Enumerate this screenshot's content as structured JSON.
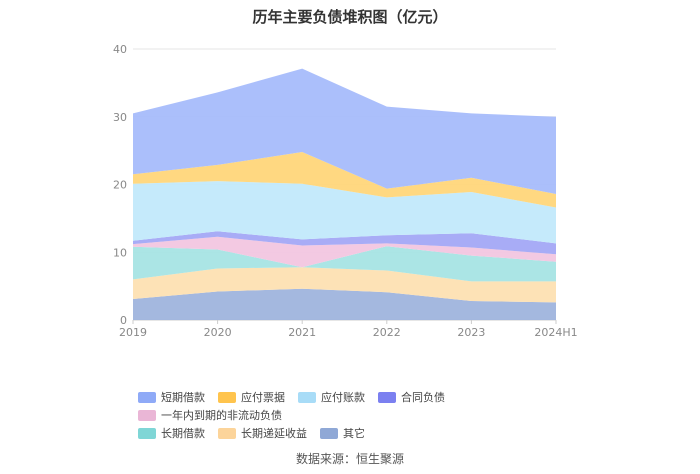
{
  "title": "历年主要负债堆积图（亿元）",
  "source": "数据来源：恒生聚源",
  "chart_data": {
    "type": "area",
    "stacked": true,
    "categories": [
      "2019",
      "2020",
      "2021",
      "2022",
      "2023",
      "2024H1"
    ],
    "ylim": [
      0,
      40
    ],
    "yticks": [
      "0",
      "10",
      "20",
      "30",
      "40"
    ],
    "legend_position": "bottom",
    "series": [
      {
        "name": "其它",
        "color": "#9fb4dd",
        "values": [
          3.1,
          4.2,
          4.6,
          4.1,
          2.8,
          2.6
        ]
      },
      {
        "name": "长期递延收益",
        "color": "#fde0b2",
        "values": [
          2.9,
          3.4,
          3.2,
          3.2,
          2.9,
          3.1
        ]
      },
      {
        "name": "长期借款",
        "color": "#a6e4e4",
        "values": [
          4.8,
          2.8,
          0.0,
          3.6,
          3.8,
          2.9
        ]
      },
      {
        "name": "一年内到期的非流动负债",
        "color": "#f2c6e0",
        "values": [
          0.4,
          1.9,
          3.2,
          0.4,
          1.2,
          1.1
        ]
      },
      {
        "name": "合同负债",
        "color": "#a3a8f5",
        "values": [
          0.5,
          0.8,
          0.9,
          1.2,
          2.1,
          1.6
        ]
      },
      {
        "name": "应付账款",
        "color": "#c2e9fb",
        "values": [
          8.4,
          7.4,
          8.2,
          5.6,
          6.1,
          5.3
        ]
      },
      {
        "name": "应付票据",
        "color": "#ffd67a",
        "values": [
          1.4,
          2.4,
          4.7,
          1.3,
          2.1,
          2.0
        ]
      },
      {
        "name": "短期借款",
        "color": "#a6bcfb",
        "values": [
          9.0,
          10.7,
          12.3,
          12.1,
          9.5,
          11.4
        ]
      }
    ]
  },
  "legend": {
    "row1": [
      {
        "label": "短期借款",
        "color": "#8faaf7"
      },
      {
        "label": "应付票据",
        "color": "#ffc44d"
      },
      {
        "label": "应付账款",
        "color": "#a8dcf7"
      },
      {
        "label": "合同负债",
        "color": "#7b80f0"
      },
      {
        "label": "一年内到期的非流动负债",
        "color": "#eab6d6"
      }
    ],
    "row2": [
      {
        "label": "长期借款",
        "color": "#7fd6d6"
      },
      {
        "label": "长期递延收益",
        "color": "#fcd49a"
      },
      {
        "label": "其它",
        "color": "#8fa8d6"
      }
    ]
  }
}
